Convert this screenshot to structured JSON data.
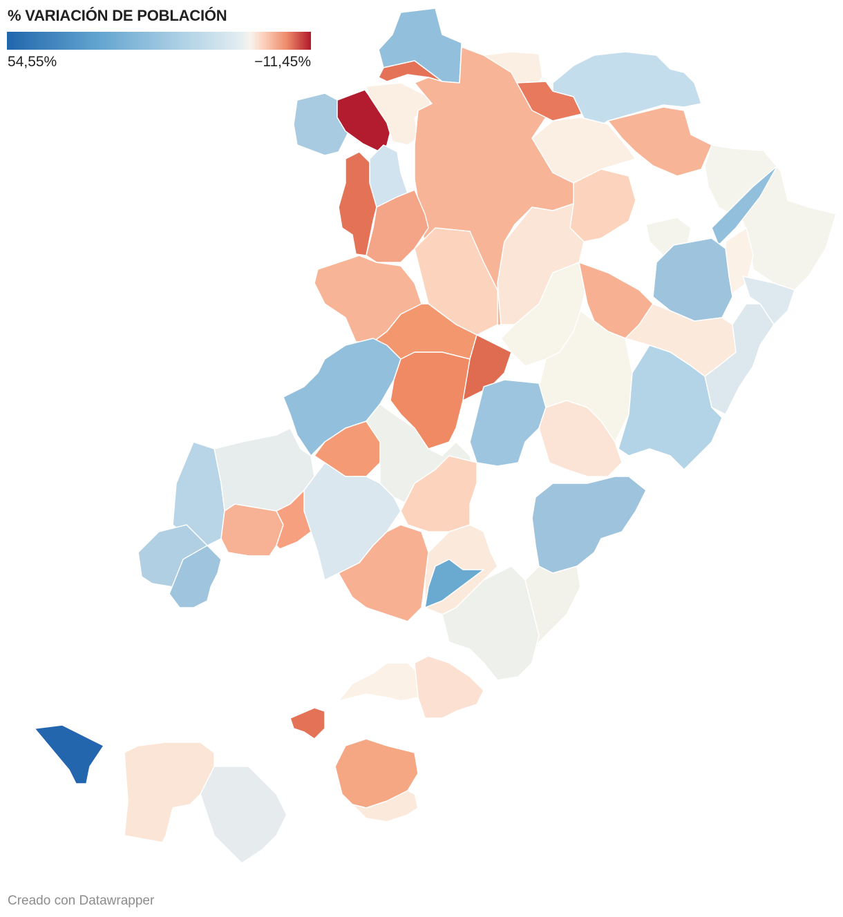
{
  "legend": {
    "title": "% VARIACIÓN DE POBLACIÓN",
    "min_label": "54,55%",
    "max_label": "−11,45%",
    "min_value": 54.55,
    "max_value": -11.45,
    "gradient_colors": [
      "#2166ac",
      "#4393c3",
      "#92c5de",
      "#d1e5f0",
      "#f7f7f7",
      "#fddbc7",
      "#f4a582",
      "#d6604d",
      "#b2182b"
    ]
  },
  "credit": "Creado con Datawrapper",
  "regions": [
    {
      "color": "#92bfdb"
    },
    {
      "color": "#e37257"
    },
    {
      "color": "#a8cbe2"
    },
    {
      "color": "#b31b2e"
    },
    {
      "color": "#fbeee2"
    },
    {
      "color": "#f8b496"
    },
    {
      "color": "#fbeee2"
    },
    {
      "color": "#e8795d"
    },
    {
      "color": "#c4ddec"
    },
    {
      "color": "#f4f4ec"
    },
    {
      "color": "#f8b496"
    },
    {
      "color": "#e37257"
    },
    {
      "color": "#d0e3ee"
    },
    {
      "color": "#f4a587"
    },
    {
      "color": "#fbeee2"
    },
    {
      "color": "#fcd3bd"
    },
    {
      "color": "#fbe5d6"
    },
    {
      "color": "#f4f4ec"
    },
    {
      "color": "#92bfdb"
    },
    {
      "color": "#fbf1e6"
    },
    {
      "color": "#f7f5ea"
    },
    {
      "color": "#9dc3dd"
    },
    {
      "color": "#f7b092"
    },
    {
      "color": "#fcd3bd"
    },
    {
      "color": "#f8b496"
    },
    {
      "color": "#dde9ef"
    },
    {
      "color": "#f3976e"
    },
    {
      "color": "#fbe9dc"
    },
    {
      "color": "#dce8ed"
    },
    {
      "color": "#f7f5ea"
    },
    {
      "color": "#92bfdb"
    },
    {
      "color": "#f08a64"
    },
    {
      "color": "#df6b50"
    },
    {
      "color": "#9ec5df"
    },
    {
      "color": "#b3d3e6"
    },
    {
      "color": "#f49b76"
    },
    {
      "color": "#e7ecec"
    },
    {
      "color": "#eef0ec"
    },
    {
      "color": "#dbe7ee"
    },
    {
      "color": "#b8d5e7"
    },
    {
      "color": "#fbe4d5"
    },
    {
      "color": "#fcd3bd"
    },
    {
      "color": "#9ec3dc"
    },
    {
      "color": "#f7b194"
    },
    {
      "color": "#f6a080"
    },
    {
      "color": "#f7b092"
    },
    {
      "color": "#b0cfe3"
    },
    {
      "color": "#9fc4dd"
    },
    {
      "color": "#fbe9dc"
    },
    {
      "color": "#e37257"
    },
    {
      "color": "#eef0ec"
    },
    {
      "color": "#6aaad1"
    },
    {
      "color": "#f3f2ea"
    },
    {
      "color": "#fbf1e6"
    },
    {
      "color": "#fce1d2"
    },
    {
      "color": "#f5a784"
    },
    {
      "color": "#e6ecee"
    },
    {
      "color": "#fbe5d6"
    },
    {
      "color": "#fbe9dc"
    },
    {
      "color": "#2466ad"
    }
  ]
}
